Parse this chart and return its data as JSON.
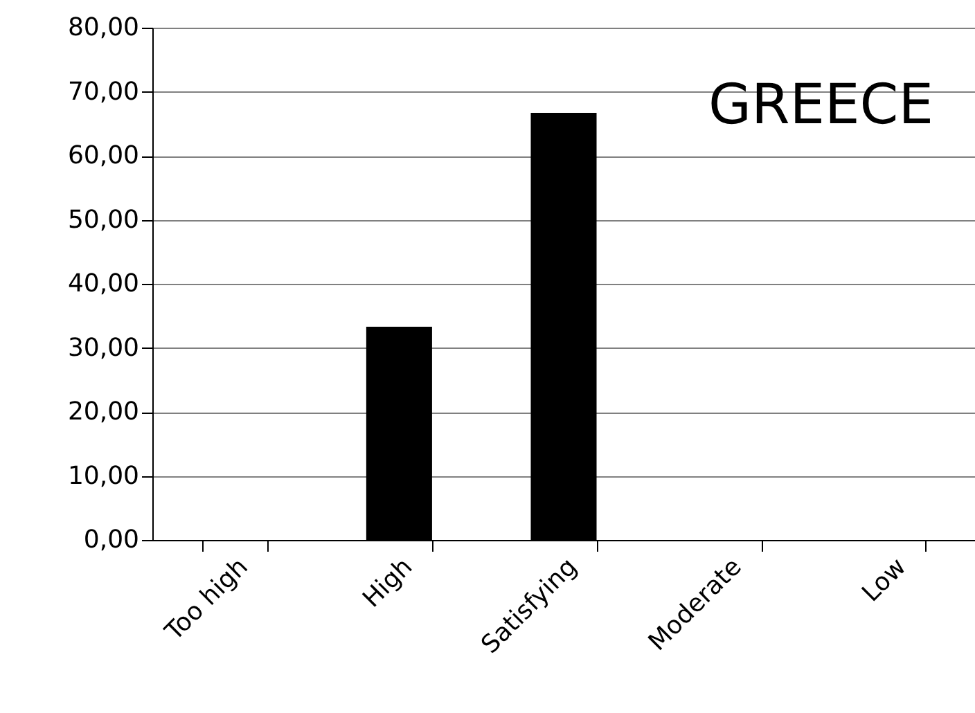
{
  "chart_data": {
    "type": "bar",
    "title": "GREECE",
    "categories": [
      "Too high",
      "High",
      "Satisfying",
      "Moderate",
      "Low"
    ],
    "values": [
      0,
      33.3,
      66.7,
      0,
      0
    ],
    "color": "#000000",
    "ylim": [
      0,
      80
    ],
    "yticks": [
      {
        "value": 0,
        "label": "0,00"
      },
      {
        "value": 10,
        "label": "10,00"
      },
      {
        "value": 20,
        "label": "20,00"
      },
      {
        "value": 30,
        "label": "30,00"
      },
      {
        "value": 40,
        "label": "40,00"
      },
      {
        "value": 50,
        "label": "50,00"
      },
      {
        "value": 60,
        "label": "60,00"
      },
      {
        "value": 70,
        "label": "70,00"
      },
      {
        "value": 80,
        "label": "80,00"
      }
    ],
    "grid": "y"
  }
}
